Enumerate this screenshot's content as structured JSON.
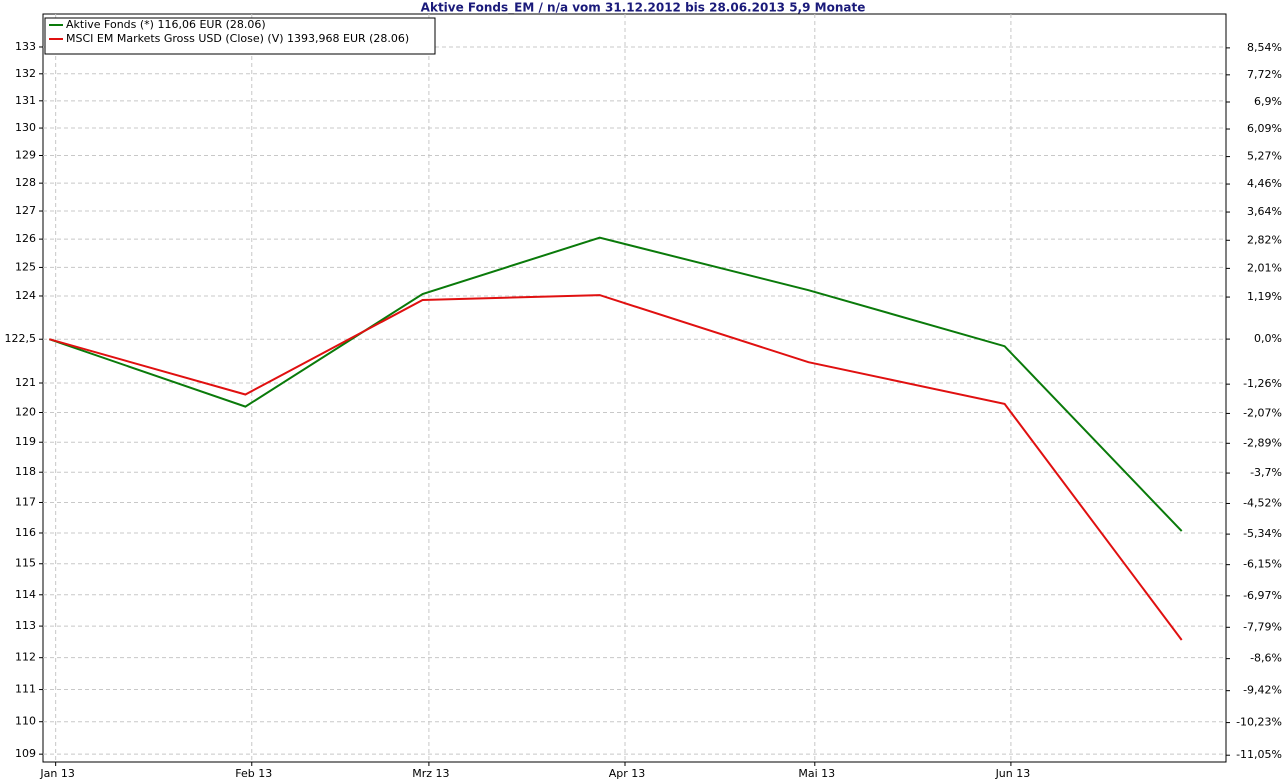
{
  "chart_data": {
    "type": "line",
    "title": "Aktive Fonds_EM / n/a vom 31.12.2012 bis 28.06.2013 5,9 Monate",
    "x": [
      "2012-12-31",
      "2013-01-31",
      "2013-02-28",
      "2013-03-28",
      "2013-04-30",
      "2013-05-31",
      "2013-06-28"
    ],
    "series": [
      {
        "name": "Aktive Fonds (*) 116,06 EUR (28.06)",
        "color": "#0a7a0a",
        "values": [
          122.5,
          120.2,
          124.07,
          126.05,
          124.2,
          122.26,
          116.06
        ]
      },
      {
        "name": "MSCI EM Markets Gross USD (Close) (V) 1393,968 EUR (28.06)",
        "color": "#e01010",
        "values": [
          122.5,
          120.61,
          123.86,
          124.03,
          121.71,
          120.29,
          112.56
        ]
      }
    ],
    "xlim": [
      "2012-12-30",
      "2013-07-05"
    ],
    "xticks": [
      {
        "value": "2013-01-01",
        "label": "Jan 13"
      },
      {
        "value": "2013-02-01",
        "label": "Feb 13"
      },
      {
        "value": "2013-03-01",
        "label": "Mrz 13"
      },
      {
        "value": "2013-04-01",
        "label": "Apr 13"
      },
      {
        "value": "2013-05-01",
        "label": "Mai 13"
      },
      {
        "value": "2013-06-01",
        "label": "Jun 13"
      }
    ],
    "ylim": [
      108.76,
      134.24
    ],
    "yscale": "log",
    "yticks": [
      109,
      110,
      111,
      112,
      113,
      114,
      115,
      116,
      117,
      118,
      119,
      120,
      121,
      {
        "value": 122.5,
        "label": "122,5"
      },
      124,
      125,
      126,
      127,
      128,
      129,
      130,
      131,
      132,
      133
    ],
    "y2lim": [
      -11.22,
      9.58
    ],
    "y2ticks": [
      {
        "value": -11.05,
        "label": "-11,05%"
      },
      {
        "value": -10.23,
        "label": "-10,23%"
      },
      {
        "value": -9.42,
        "label": "-9,42%"
      },
      {
        "value": -8.6,
        "label": "-8,6%"
      },
      {
        "value": -7.79,
        "label": "-7,79%"
      },
      {
        "value": -6.97,
        "label": "-6,97%"
      },
      {
        "value": -6.15,
        "label": "-6,15%"
      },
      {
        "value": -5.34,
        "label": "-5,34%"
      },
      {
        "value": -4.52,
        "label": "-4,52%"
      },
      {
        "value": -3.7,
        "label": "-3,7%"
      },
      {
        "value": -2.89,
        "label": "-2,89%"
      },
      {
        "value": -2.07,
        "label": "-2,07%"
      },
      {
        "value": -1.26,
        "label": "-1,26%"
      },
      {
        "value": 0.0,
        "label": "0,0%"
      },
      {
        "value": 1.19,
        "label": "1,19%"
      },
      {
        "value": 2.01,
        "label": "2,01%"
      },
      {
        "value": 2.82,
        "label": "2,82%"
      },
      {
        "value": 3.64,
        "label": "3,64%"
      },
      {
        "value": 4.46,
        "label": "4,46%"
      },
      {
        "value": 5.27,
        "label": "5,27%"
      },
      {
        "value": 6.09,
        "label": "6,09%"
      },
      {
        "value": 6.9,
        "label": "6,9%"
      },
      {
        "value": 7.72,
        "label": "7,72%"
      },
      {
        "value": 8.54,
        "label": "8,54%"
      }
    ],
    "grid": true,
    "legend": "top-left"
  }
}
